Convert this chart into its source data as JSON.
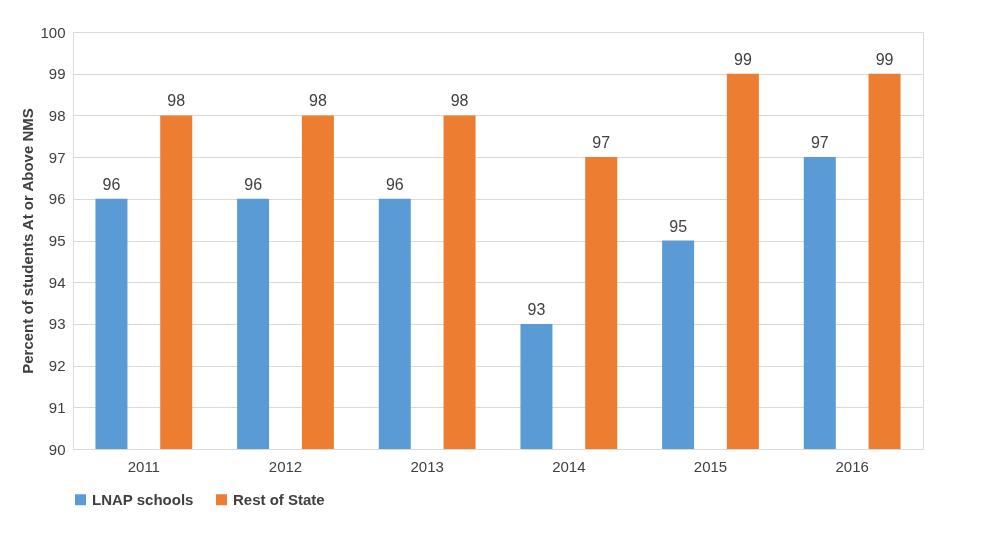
{
  "chart_data": {
    "type": "bar",
    "ylabel": "Percent of students At or Above NMS",
    "categories": [
      "2011",
      "2012",
      "2013",
      "2014",
      "2015",
      "2016"
    ],
    "series": [
      {
        "name": "LNAP schools",
        "color": "#5b9bd5",
        "values": [
          96,
          96,
          96,
          93,
          95,
          97
        ]
      },
      {
        "name": "Rest of State",
        "color": "#ed7d31",
        "values": [
          98,
          98,
          98,
          97,
          99,
          99
        ]
      }
    ],
    "ylim": [
      90,
      100
    ],
    "yticks": [
      90,
      91,
      92,
      93,
      94,
      95,
      96,
      97,
      98,
      99,
      100
    ],
    "grid": "y",
    "legend": "bottom",
    "data_labels": true
  }
}
